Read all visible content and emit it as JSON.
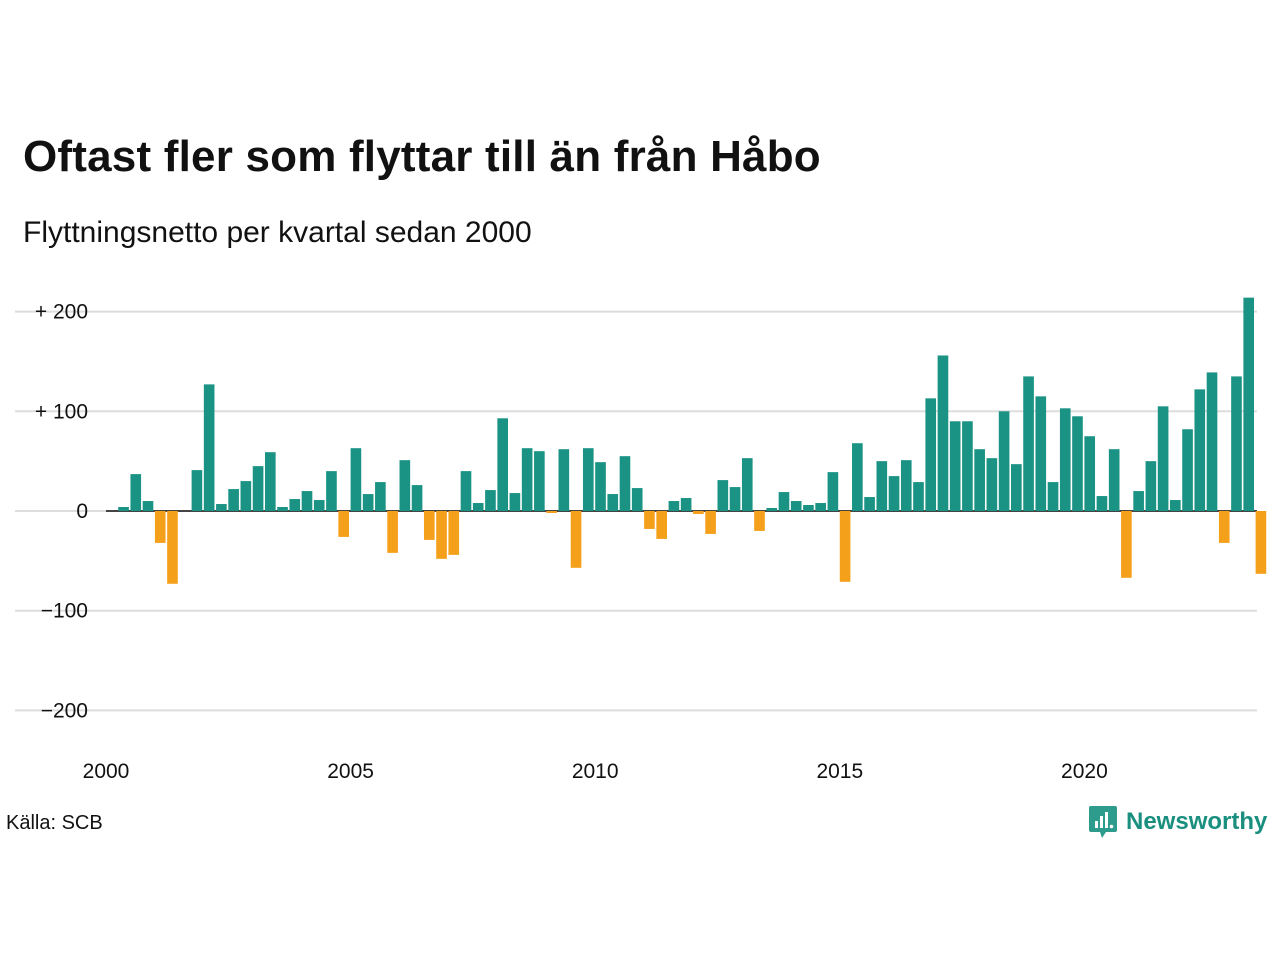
{
  "title": "Oftast fler som flyttar till än från Håbo",
  "subtitle": "Flyttningsnetto per kvartal sedan 2000",
  "source": "Källa: SCB",
  "brand": {
    "name": "Newsworthy",
    "icon": "newsworthy-logo-icon",
    "color": "#1a8f7f"
  },
  "colors": {
    "positive": "#1a9384",
    "negative": "#f5a01a",
    "grid": "#dddddd",
    "zero": "#111111"
  },
  "chart_data": {
    "type": "bar",
    "title": "Oftast fler som flyttar till än från Håbo",
    "subtitle": "Flyttningsnetto per kvartal sedan 2000",
    "xlabel": "",
    "ylabel": "",
    "ylim": [
      -200,
      200
    ],
    "xlim": [
      2000,
      2023.75
    ],
    "y_ticks": [
      {
        "value": 200,
        "label": "+ 200"
      },
      {
        "value": 100,
        "label": "+ 100"
      },
      {
        "value": 0,
        "label": "0"
      },
      {
        "value": -100,
        "label": "−100"
      },
      {
        "value": -200,
        "label": "−200"
      }
    ],
    "x_ticks": [
      {
        "value": 2000,
        "label": "2000"
      },
      {
        "value": 2005,
        "label": "2005"
      },
      {
        "value": 2010,
        "label": "2010"
      },
      {
        "value": 2015,
        "label": "2015"
      },
      {
        "value": 2020,
        "label": "2020"
      }
    ],
    "grid": true,
    "start_quarter": "2000 Q1",
    "values": [
      0,
      4,
      37,
      10,
      -32,
      -73,
      0,
      41,
      127,
      7,
      22,
      30,
      45,
      59,
      4,
      12,
      20,
      11,
      40,
      -26,
      63,
      17,
      29,
      -42,
      51,
      26,
      -29,
      -48,
      -44,
      40,
      8,
      21,
      93,
      18,
      63,
      60,
      -2,
      62,
      -57,
      63,
      49,
      17,
      55,
      23,
      -18,
      -28,
      10,
      13,
      -3,
      -23,
      31,
      24,
      53,
      -20,
      3,
      19,
      10,
      6,
      8,
      39,
      -71,
      68,
      14,
      50,
      35,
      51,
      29,
      113,
      156,
      90,
      90,
      62,
      53,
      100,
      47,
      135,
      115,
      29,
      103,
      95,
      75,
      15,
      62,
      -67,
      20,
      50,
      105,
      11,
      82,
      122,
      139,
      -32,
      135,
      214,
      -63
    ]
  }
}
